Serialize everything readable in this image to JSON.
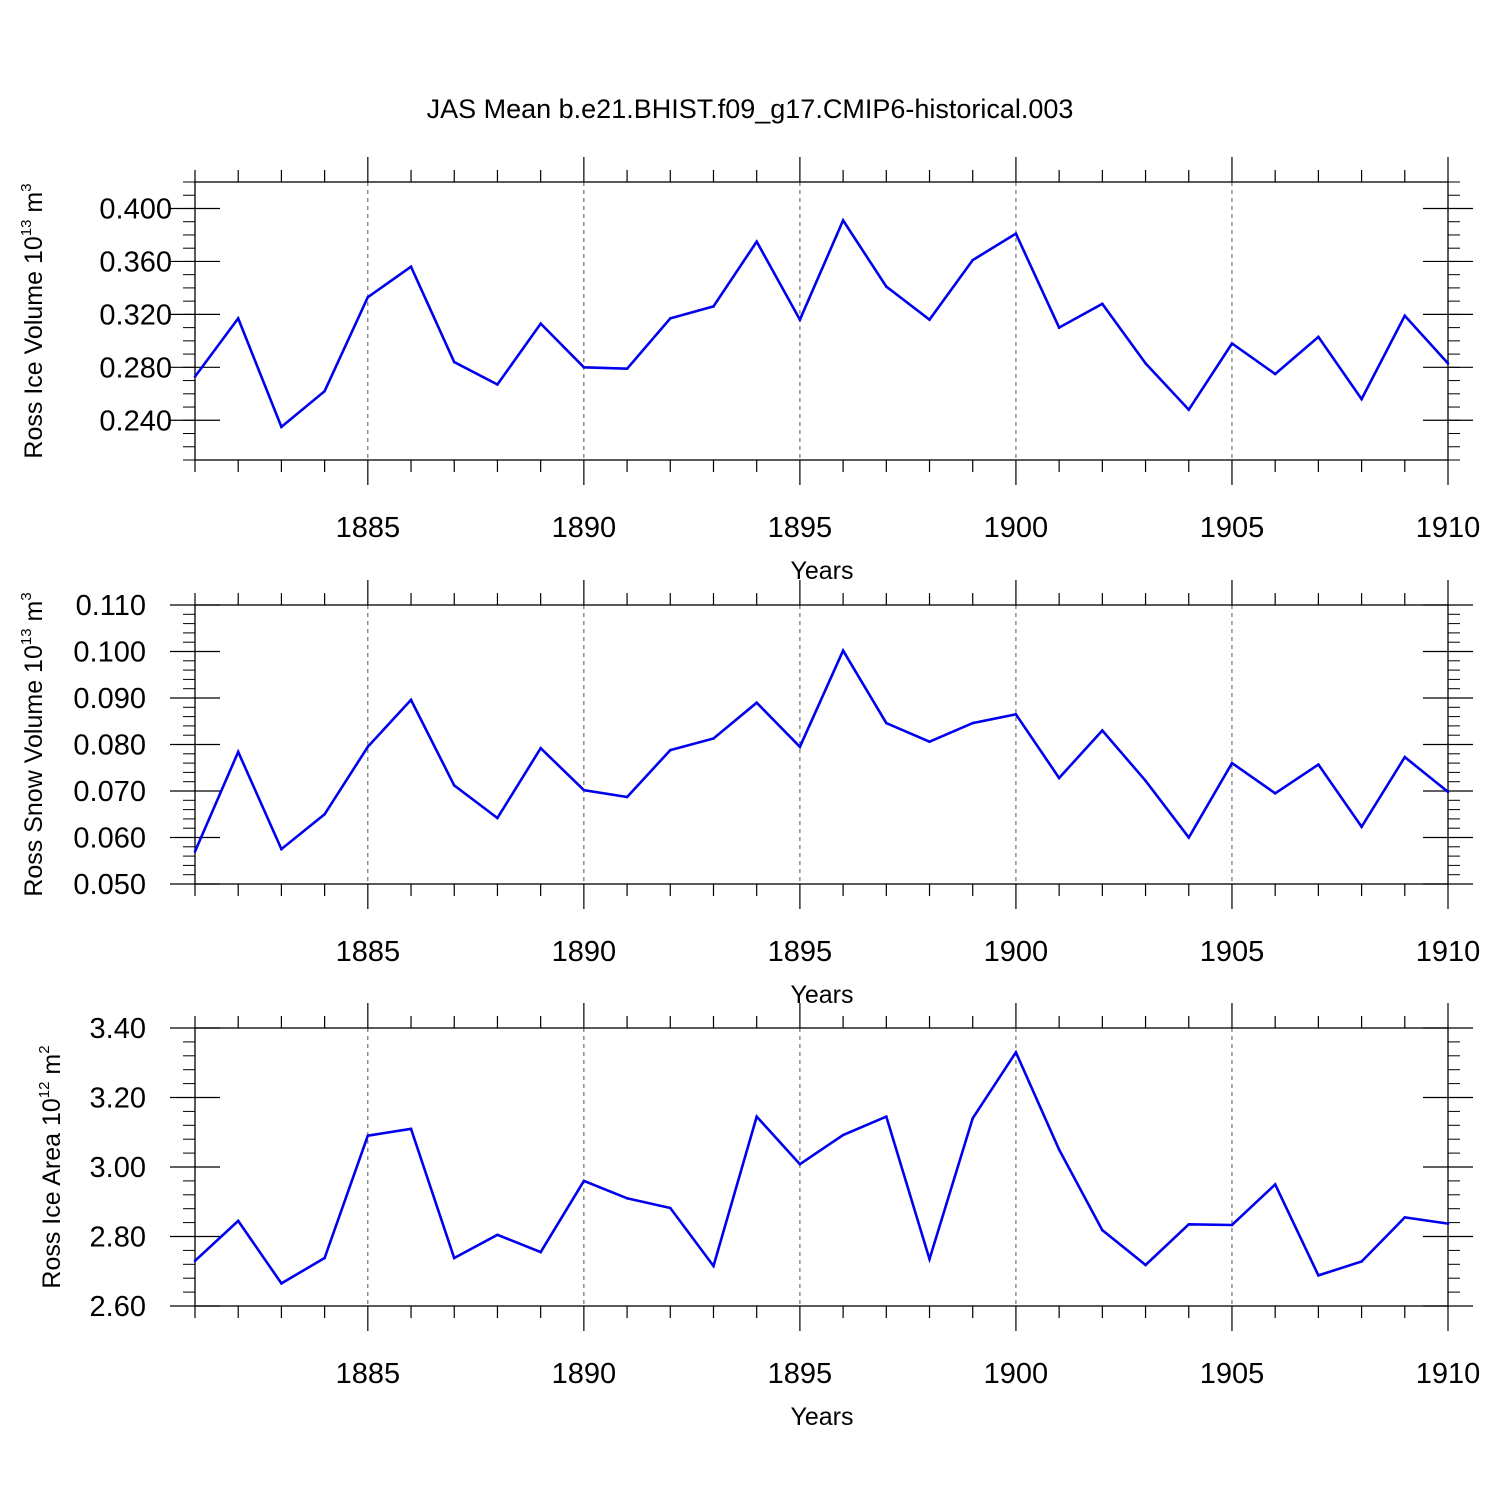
{
  "title": "JAS Mean b.e21.BHIST.f09_g17.CMIP6-historical.003",
  "colors": {
    "series": "#0000ee",
    "axis": "#000000",
    "grid": "#555555"
  },
  "chart_data": [
    {
      "type": "line",
      "ylabel_parts": [
        "Ross Ice Volume 10",
        "13",
        " m",
        "3"
      ],
      "xlabel": "Years",
      "xlim": [
        1881,
        1910
      ],
      "ylim": [
        0.21,
        0.42
      ],
      "yticks": [
        0.24,
        0.28,
        0.32,
        0.36,
        0.4
      ],
      "ytick_labels": [
        "0.240",
        "0.280",
        "0.320",
        "0.360",
        "0.400"
      ],
      "yminor_step": 0.01,
      "xticks": [
        1885,
        1890,
        1895,
        1900,
        1905,
        1910
      ],
      "xtick_labels": [
        "1885",
        "1890",
        "1895",
        "1900",
        "1905",
        "1910"
      ],
      "grid": "dashed vertical at major x ticks",
      "x": [
        1881,
        1882,
        1883,
        1884,
        1885,
        1886,
        1887,
        1888,
        1889,
        1890,
        1891,
        1892,
        1893,
        1894,
        1895,
        1896,
        1897,
        1898,
        1899,
        1900,
        1901,
        1902,
        1903,
        1904,
        1905,
        1906,
        1907,
        1908,
        1909,
        1910
      ],
      "values": [
        0.273,
        0.317,
        0.235,
        0.262,
        0.333,
        0.356,
        0.284,
        0.267,
        0.313,
        0.28,
        0.279,
        0.317,
        0.326,
        0.375,
        0.316,
        0.391,
        0.341,
        0.316,
        0.361,
        0.381,
        0.31,
        0.328,
        0.283,
        0.248,
        0.298,
        0.275,
        0.303,
        0.256,
        0.319,
        0.283
      ]
    },
    {
      "type": "line",
      "ylabel_parts": [
        "Ross Snow Volume 10",
        "13",
        " m",
        "3"
      ],
      "xlabel": "Years",
      "xlim": [
        1881,
        1910
      ],
      "ylim": [
        0.05,
        0.11
      ],
      "yticks": [
        0.05,
        0.06,
        0.07,
        0.08,
        0.09,
        0.1,
        0.11
      ],
      "ytick_labels": [
        "0.050",
        "0.060",
        "0.070",
        "0.080",
        "0.090",
        "0.100",
        "0.110"
      ],
      "yminor_step": 0.002,
      "xticks": [
        1885,
        1890,
        1895,
        1900,
        1905,
        1910
      ],
      "xtick_labels": [
        "1885",
        "1890",
        "1895",
        "1900",
        "1905",
        "1910"
      ],
      "grid": "dashed vertical at major x ticks",
      "x": [
        1881,
        1882,
        1883,
        1884,
        1885,
        1886,
        1887,
        1888,
        1889,
        1890,
        1891,
        1892,
        1893,
        1894,
        1895,
        1896,
        1897,
        1898,
        1899,
        1900,
        1901,
        1902,
        1903,
        1904,
        1905,
        1906,
        1907,
        1908,
        1909,
        1910
      ],
      "values": [
        0.057,
        0.0784,
        0.0575,
        0.065,
        0.0795,
        0.0896,
        0.0712,
        0.0642,
        0.0792,
        0.0702,
        0.0687,
        0.0788,
        0.0813,
        0.089,
        0.0795,
        0.1002,
        0.0846,
        0.0806,
        0.0846,
        0.0865,
        0.0728,
        0.083,
        0.0722,
        0.06,
        0.076,
        0.0695,
        0.0757,
        0.0623,
        0.0773,
        0.0698
      ]
    },
    {
      "type": "line",
      "ylabel_parts": [
        "Ross Ice Area 10",
        "12",
        " m",
        "2"
      ],
      "xlabel": "Years",
      "xlim": [
        1881,
        1910
      ],
      "ylim": [
        2.6,
        3.4
      ],
      "yticks": [
        2.6,
        2.8,
        3.0,
        3.2,
        3.4
      ],
      "ytick_labels": [
        "2.60",
        "2.80",
        "3.00",
        "3.20",
        "3.40"
      ],
      "yminor_step": 0.04,
      "xticks": [
        1885,
        1890,
        1895,
        1900,
        1905,
        1910
      ],
      "xtick_labels": [
        "1885",
        "1890",
        "1895",
        "1900",
        "1905",
        "1910"
      ],
      "grid": "dashed vertical at major x ticks",
      "x": [
        1881,
        1882,
        1883,
        1884,
        1885,
        1886,
        1887,
        1888,
        1889,
        1890,
        1891,
        1892,
        1893,
        1894,
        1895,
        1896,
        1897,
        1898,
        1899,
        1900,
        1901,
        1902,
        1903,
        1904,
        1905,
        1906,
        1907,
        1908,
        1909,
        1910
      ],
      "values": [
        2.73,
        2.845,
        2.665,
        2.738,
        3.09,
        3.11,
        2.738,
        2.805,
        2.755,
        2.96,
        2.91,
        2.882,
        2.715,
        3.145,
        3.008,
        3.092,
        3.145,
        2.735,
        3.14,
        3.33,
        3.05,
        2.818,
        2.718,
        2.835,
        2.833,
        2.95,
        2.688,
        2.728,
        2.855,
        2.837
      ]
    }
  ]
}
